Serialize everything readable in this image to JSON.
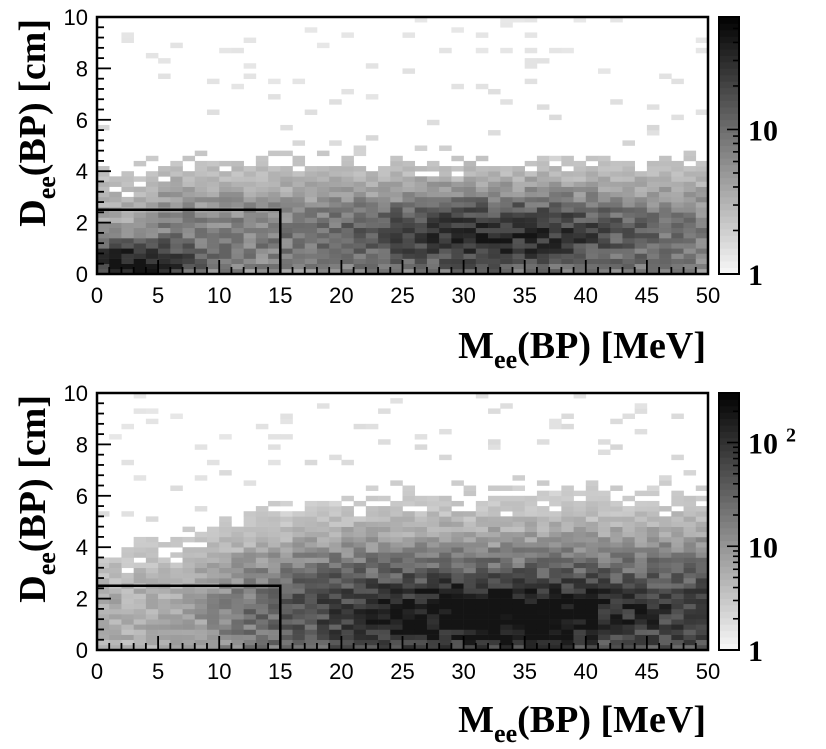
{
  "chart_data": [
    {
      "type": "heatmap",
      "panel": "top",
      "xlabel": {
        "main": "M",
        "sub": "ee",
        "rest": "(BP) [MeV]"
      },
      "ylabel": {
        "main": "D",
        "sub": "ee",
        "rest": "(BP) [cm]"
      },
      "xlim": [
        0,
        50
      ],
      "ylim": [
        0,
        10
      ],
      "x_ticks": [
        0,
        5,
        10,
        15,
        20,
        25,
        30,
        35,
        40,
        45,
        50
      ],
      "y_ticks": [
        0,
        2,
        4,
        6,
        8,
        10
      ],
      "colorbar": {
        "scale": "log",
        "range": [
          1,
          60
        ],
        "labels": [
          {
            "base": "1",
            "exp": "",
            "value": 1
          },
          {
            "base": "10",
            "exp": "",
            "value": 10
          }
        ]
      },
      "cut_box": {
        "x": [
          0,
          15
        ],
        "y": [
          0,
          2.5
        ]
      },
      "density_peaks": [
        {
          "x": 3,
          "y": 0.4,
          "intensity": 1.0
        },
        {
          "x": 32,
          "y": 1.5,
          "intensity": 0.75
        }
      ]
    },
    {
      "type": "heatmap",
      "panel": "bottom",
      "xlabel": {
        "main": "M",
        "sub": "ee",
        "rest": "(BP) [MeV]"
      },
      "ylabel": {
        "main": "D",
        "sub": "ee",
        "rest": "(BP) [cm]"
      },
      "xlim": [
        0,
        50
      ],
      "ylim": [
        0,
        10
      ],
      "x_ticks": [
        0,
        5,
        10,
        15,
        20,
        25,
        30,
        35,
        40,
        45,
        50
      ],
      "y_ticks": [
        0,
        2,
        4,
        6,
        8,
        10
      ],
      "colorbar": {
        "scale": "log",
        "range": [
          1,
          300
        ],
        "labels": [
          {
            "base": "1",
            "exp": "",
            "value": 1
          },
          {
            "base": "10",
            "exp": "",
            "value": 10
          },
          {
            "base": "10",
            "exp": "2",
            "value": 100
          }
        ]
      },
      "cut_box": {
        "x": [
          0,
          15
        ],
        "y": [
          0,
          2.5
        ]
      },
      "density_peaks": [
        {
          "x": 33,
          "y": 1.4,
          "intensity": 1.0
        }
      ]
    }
  ]
}
